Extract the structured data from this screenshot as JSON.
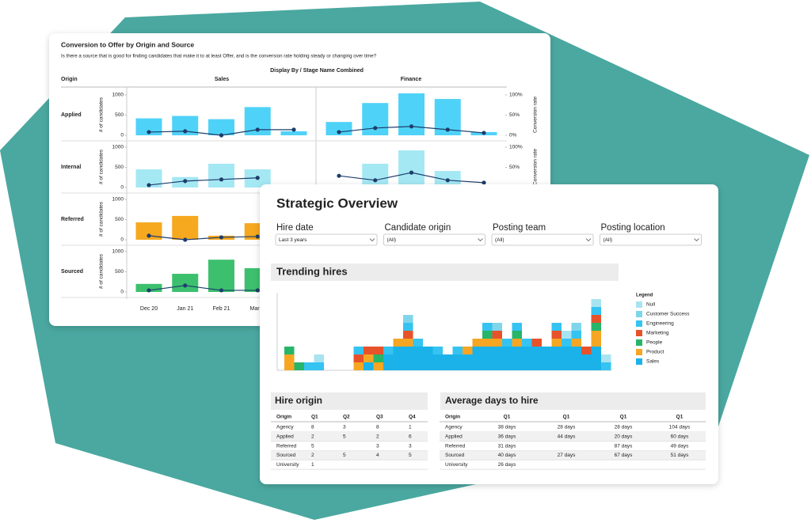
{
  "back_card": {
    "title": "Conversion to Offer by Origin and Source",
    "subtitle": "Is there a source that is good for finding candidates that make it to at least Offer, and is the conversion rate holding steady or changing over time?",
    "origin_header": "Origin",
    "display_by": "Display By / Stage Name Combined",
    "columns": [
      "Sales",
      "Finance"
    ],
    "y_axis_label": "# of candidates",
    "y2_axis_label": "Conversion rate",
    "ylim": [
      0,
      1000
    ],
    "yticks": [
      0,
      500,
      1000
    ],
    "y2lim": [
      0,
      100
    ],
    "y2ticks": [
      {
        "value": 0,
        "label": "0%"
      },
      {
        "value": 50,
        "label": "50%"
      },
      {
        "value": 100,
        "label": "100%"
      }
    ],
    "line_color": "#1d3d6b",
    "categories": [
      "Dec 20",
      "Jan 21",
      "Feb 21",
      "March",
      null
    ],
    "rows": [
      {
        "name": "Applied",
        "color": "#4fd2f8",
        "right_axis": true,
        "panels": [
          {
            "bars": [
              420,
              480,
              400,
              700,
              100
            ],
            "rate": [
              8,
              10,
              0,
              14,
              14
            ]
          },
          {
            "bars": [
              330,
              800,
              1040,
              900,
              80
            ],
            "rate": [
              8,
              18,
              22,
              14,
              6
            ]
          }
        ]
      },
      {
        "name": "Internal",
        "color": "#a4e8f4",
        "right_axis": true,
        "panels": [
          {
            "bars": [
              450,
              260,
              590,
              450,
              null
            ],
            "rate": [
              6,
              16,
              20,
              24,
              null
            ]
          },
          {
            "bars": [
              null,
              590,
              920,
              410,
              null
            ],
            "rate": [
              29,
              18,
              37,
              18,
              12
            ]
          }
        ]
      },
      {
        "name": "Referred",
        "color": "#f6a81f",
        "right_axis": false,
        "panels": [
          {
            "bars": [
              430,
              590,
              100,
              410,
              null
            ],
            "rate": [
              10,
              0,
              6,
              8,
              null
            ]
          }
        ]
      },
      {
        "name": "Sourced",
        "color": "#3cc06e",
        "right_axis": false,
        "panels": [
          {
            "bars": [
              200,
              450,
              800,
              590,
              null
            ],
            "rate": [
              4,
              16,
              4,
              4,
              null
            ]
          }
        ]
      }
    ]
  },
  "front_card": {
    "title": "Strategic Overview",
    "filters": [
      {
        "label": "Hire date",
        "value": "Last 3 years"
      },
      {
        "label": "Candidate origin",
        "value": "(All)"
      },
      {
        "label": "Posting team",
        "value": "(All)"
      },
      {
        "label": "Posting location",
        "value": "(All)"
      }
    ],
    "trending_hires": {
      "title": "Trending hires",
      "legend_title": "Legend",
      "series": [
        {
          "name": "Null",
          "color": "#a8e4f0",
          "values": [
            0,
            0,
            0,
            1,
            0,
            0,
            0,
            0,
            0,
            0,
            0,
            0,
            0,
            0,
            0,
            0,
            0,
            0,
            0,
            0,
            0,
            0,
            0,
            0,
            0,
            0,
            0,
            0,
            1,
            0,
            0,
            1,
            1
          ]
        },
        {
          "name": "Customer Success",
          "color": "#7fd6ea",
          "values": [
            0,
            0,
            0,
            0,
            0,
            0,
            0,
            0,
            0,
            0,
            0,
            0,
            1,
            0,
            0,
            0,
            0,
            0,
            0,
            0,
            0,
            1,
            0,
            0,
            0,
            0,
            0,
            0,
            0,
            1,
            0,
            0,
            0
          ]
        },
        {
          "name": "Engineering",
          "color": "#35c3f1",
          "values": [
            0,
            0,
            1,
            1,
            0,
            0,
            0,
            1,
            0,
            0,
            1,
            0,
            1,
            1,
            0,
            1,
            0,
            1,
            0,
            0,
            1,
            0,
            1,
            1,
            1,
            0,
            0,
            1,
            1,
            1,
            0,
            1,
            1
          ]
        },
        {
          "name": "Marketing",
          "color": "#e8522a",
          "values": [
            0,
            0,
            0,
            0,
            0,
            0,
            0,
            1,
            1,
            1,
            0,
            0,
            1,
            0,
            0,
            0,
            0,
            0,
            0,
            0,
            0,
            1,
            0,
            0,
            0,
            1,
            0,
            1,
            0,
            0,
            1,
            1,
            0
          ]
        },
        {
          "name": "People",
          "color": "#27b56a",
          "values": [
            1,
            1,
            0,
            0,
            0,
            0,
            0,
            0,
            0,
            1,
            0,
            0,
            0,
            0,
            0,
            0,
            0,
            0,
            0,
            0,
            1,
            0,
            0,
            1,
            0,
            0,
            0,
            0,
            0,
            0,
            0,
            1,
            0
          ]
        },
        {
          "name": "Product",
          "color": "#f6a623",
          "values": [
            2,
            0,
            0,
            0,
            0,
            0,
            0,
            1,
            1,
            1,
            0,
            1,
            1,
            0,
            0,
            0,
            0,
            0,
            1,
            1,
            1,
            1,
            0,
            1,
            0,
            0,
            0,
            1,
            0,
            1,
            0,
            2,
            0
          ]
        },
        {
          "name": "Sales",
          "color": "#1bb2ea",
          "values": [
            0,
            0,
            0,
            0,
            0,
            0,
            0,
            0,
            1,
            0,
            2,
            3,
            3,
            3,
            3,
            2,
            2,
            2,
            2,
            3,
            3,
            3,
            3,
            3,
            3,
            3,
            3,
            3,
            3,
            3,
            2,
            3,
            0
          ]
        }
      ]
    },
    "hire_origin": {
      "title": "Hire origin",
      "header": [
        "Origin",
        "Q1",
        "Q2",
        "Q3",
        "Q4"
      ],
      "rows": [
        [
          "Agency",
          8,
          3,
          8,
          1
        ],
        [
          "Applied",
          2,
          5,
          2,
          6
        ],
        [
          "Referred",
          5,
          null,
          3,
          3
        ],
        [
          "Sourced",
          2,
          5,
          4,
          5
        ],
        [
          "University",
          1,
          null,
          null,
          null
        ]
      ]
    },
    "average_days": {
      "title": "Average days to hire",
      "header": [
        "Origin",
        "Q1",
        "Q1",
        "Q1",
        "Q1"
      ],
      "rows": [
        [
          "Agency",
          "38 days",
          "28 days",
          "28 days",
          "104 days"
        ],
        [
          "Applied",
          "36 days",
          "44 days",
          "20 days",
          "60 days"
        ],
        [
          "Referred",
          "31 days",
          null,
          "87 days",
          "49 days"
        ],
        [
          "Sourced",
          "40 days",
          "27 days",
          "67 days",
          "51 days"
        ],
        [
          "University",
          "26 days",
          null,
          null,
          null
        ]
      ]
    }
  }
}
